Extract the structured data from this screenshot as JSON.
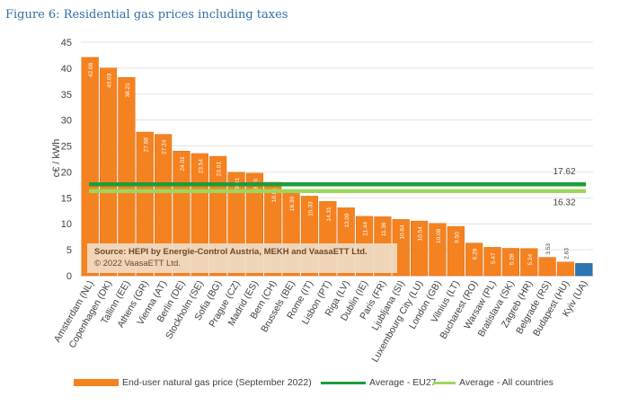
{
  "figure_title": "Figure 6: Residential gas prices including taxes",
  "source": {
    "line1": "Source: HEPI by Energie-Control Austria, MEKH and VaasaETT Ltd.",
    "line2": "© 2022 VaasaETT Ltd."
  },
  "legend": {
    "bar": "End-user natural gas price (September 2022)",
    "eu27": "Average - EU27",
    "all": "Average - All countries"
  },
  "colors": {
    "bar": "#f58220",
    "highlight": "#2e75b6",
    "eu27": "#1a9e3a",
    "all": "#9ed65c"
  },
  "chart_data": {
    "type": "bar",
    "ylabel": "c€ / kWh",
    "ylim": [
      0,
      45
    ],
    "yticks": [
      0,
      5,
      10,
      15,
      20,
      25,
      30,
      35,
      40,
      45
    ],
    "grid": true,
    "categories": [
      "Amsterdam (NL)",
      "Copenhagen (DK)",
      "Tallinn (EE)",
      "Athens (GR)",
      "Vienna (AT)",
      "Berlin (DE)",
      "Stockholm (SE)",
      "Sofia (BG)",
      "Prague (CZ)",
      "Madrid (ES)",
      "Bern (CH)",
      "Brussels (BE)",
      "Rome (IT)",
      "Lisbon (PT)",
      "Riga (LV)",
      "Dublin (IE)",
      "Paris (FR)",
      "Ljubljana (SI)",
      "Luxembourg City (LU)",
      "London (GB)",
      "Vilnius (LT)",
      "Bucharest (RO)",
      "Warsaw (PL)",
      "Bratislava (SK)",
      "Zagreb (HR)",
      "Belgrade (RS)",
      "Budapest (HU)",
      "Kyiv (UA)"
    ],
    "values": [
      42.08,
      40.03,
      38.21,
      27.68,
      27.24,
      24.01,
      23.54,
      23.01,
      19.91,
      19.76,
      18.01,
      16.3,
      15.33,
      14.31,
      13.09,
      11.44,
      11.36,
      10.84,
      10.54,
      10.08,
      9.5,
      6.29,
      5.47,
      5.28,
      5.24,
      3.53,
      2.63,
      2.36
    ],
    "value_labels": [
      "42.08",
      "40.03",
      "38.21",
      "27.68",
      "27.24",
      "24.01",
      "23.54",
      "23.01",
      "19.91",
      "19.76",
      "18.01",
      "16.30",
      "15.33",
      "14.31",
      "13.09",
      "11.44",
      "11.36",
      "10.84",
      "10.54",
      "10.08",
      "9.50",
      "6.29",
      "5.47",
      "5.28",
      "5.24",
      "3.53",
      "2.63",
      "2.36"
    ],
    "highlight_category": "Kyiv (UA)",
    "reference_lines": [
      {
        "name": "Average - EU27",
        "value": 17.62,
        "label": "17.62"
      },
      {
        "name": "Average - All countries",
        "value": 16.32,
        "label": "16.32"
      }
    ]
  }
}
